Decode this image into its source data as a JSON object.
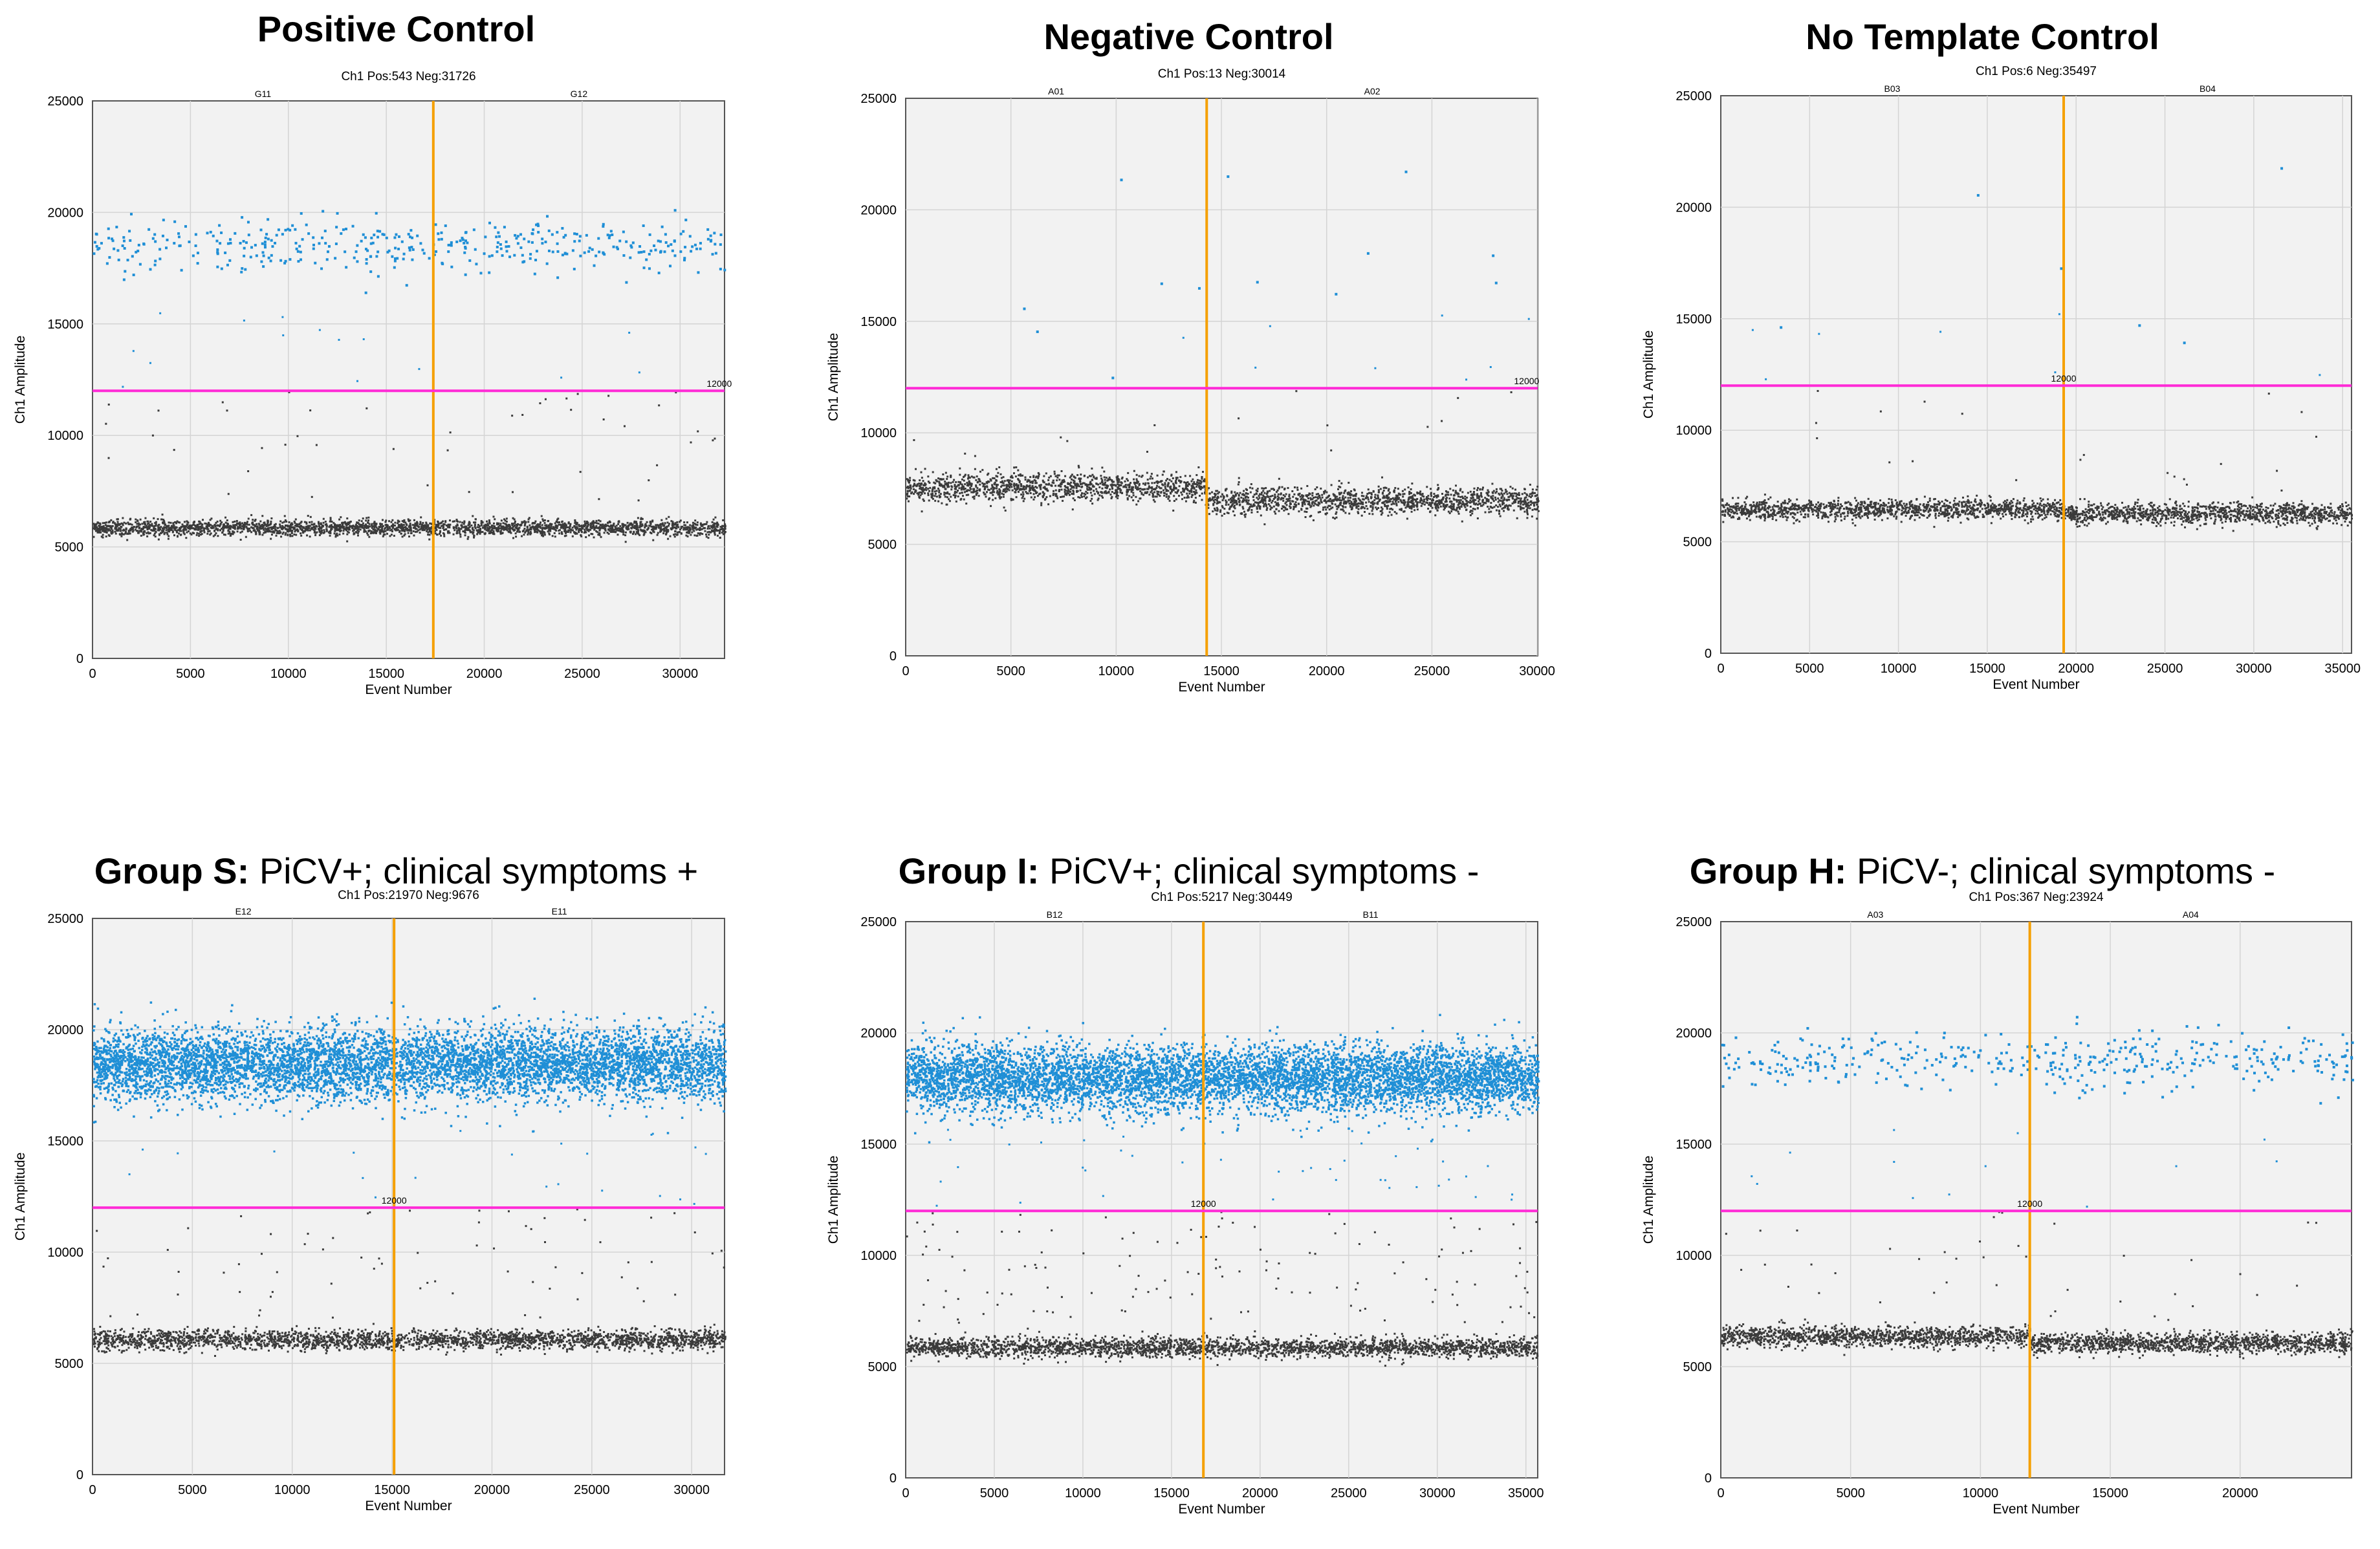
{
  "figure": {
    "threshold_label": "12000",
    "colors": {
      "positive": "#1f8fd6",
      "negative": "#3a3a3a",
      "threshold": "#ff2bd6",
      "well_divider": "#f5a000",
      "plot_bg": "#f2f2f2",
      "grid": "#d4d4d4"
    }
  },
  "chart_data": [
    {
      "type": "scatter",
      "title_bold": "Positive Control",
      "title_rest": "",
      "subtitle": "Ch1 Pos:543 Neg:31726",
      "xlabel": "Event Number",
      "ylabel": "Ch1 Amplitude",
      "xlim": [
        0,
        32269
      ],
      "ylim": [
        0,
        25000
      ],
      "xticks": [
        0,
        5000,
        10000,
        15000,
        20000,
        25000,
        30000
      ],
      "yticks": [
        0,
        5000,
        10000,
        15000,
        20000,
        25000
      ],
      "wells": [
        "G11",
        "G12"
      ],
      "well_split": 17400,
      "threshold": 12000,
      "threshold_label_x": 32000,
      "positive_count": 543,
      "negative_count": 31726,
      "pos_band": [
        {
          "x0": 0,
          "x1": 32269,
          "y": 18500,
          "sd": 650
        }
      ],
      "neg_band": [
        {
          "x0": 0,
          "x1": 32269,
          "y": 5900,
          "sd": 180
        }
      ],
      "scatter_mid": 45,
      "density": "sparse"
    },
    {
      "type": "scatter",
      "title_bold": "Negative Control",
      "title_rest": "",
      "subtitle": "Ch1 Pos:13 Neg:30014",
      "xlabel": "Event Number",
      "ylabel": "Ch1 Amplitude",
      "xlim": [
        0,
        30027
      ],
      "ylim": [
        0,
        25000
      ],
      "xticks": [
        0,
        5000,
        10000,
        15000,
        20000,
        25000,
        30000
      ],
      "yticks": [
        0,
        5000,
        10000,
        15000,
        20000,
        25000
      ],
      "wells": [
        "A01",
        "A02"
      ],
      "well_split": 14300,
      "threshold": 12000,
      "threshold_label_x": 29500,
      "positive_count": 13,
      "negative_count": 30014,
      "pos_band": [],
      "neg_band": [
        {
          "x0": 0,
          "x1": 14300,
          "y": 7600,
          "sd": 330
        },
        {
          "x0": 14300,
          "x1": 30027,
          "y": 7000,
          "sd": 300
        }
      ],
      "scatter_mid": 25,
      "density": "none"
    },
    {
      "type": "scatter",
      "title_bold": "No Template Control",
      "title_rest": "",
      "subtitle": "Ch1 Pos:6 Neg:35497",
      "xlabel": "Event Number",
      "ylabel": "Ch1 Amplitude",
      "xlim": [
        0,
        35503
      ],
      "ylim": [
        0,
        25000
      ],
      "xticks": [
        0,
        5000,
        10000,
        15000,
        20000,
        25000,
        30000,
        35000
      ],
      "yticks": [
        0,
        5000,
        10000,
        15000,
        20000,
        25000
      ],
      "wells": [
        "B03",
        "B04"
      ],
      "well_split": 19300,
      "threshold": 12000,
      "threshold_label_x": 19300,
      "positive_count": 6,
      "negative_count": 35497,
      "pos_band": [],
      "neg_band": [
        {
          "x0": 0,
          "x1": 19300,
          "y": 6500,
          "sd": 220
        },
        {
          "x0": 19300,
          "x1": 35503,
          "y": 6300,
          "sd": 230
        }
      ],
      "scatter_mid": 22,
      "density": "none"
    },
    {
      "type": "scatter",
      "title_bold": "Group S:",
      "title_rest": "PiCV+; clinical symptoms +",
      "subtitle": "Ch1 Pos:21970 Neg:9676",
      "xlabel": "Event Number",
      "ylabel": "Ch1 Amplitude",
      "xlim": [
        0,
        31646
      ],
      "ylim": [
        0,
        25000
      ],
      "xticks": [
        0,
        5000,
        10000,
        15000,
        20000,
        25000,
        30000
      ],
      "yticks": [
        0,
        5000,
        10000,
        15000,
        20000,
        25000
      ],
      "wells": [
        "E12",
        "E11"
      ],
      "well_split": 15100,
      "threshold": 12000,
      "threshold_label_x": 15100,
      "positive_count": 21970,
      "negative_count": 9676,
      "pos_band": [
        {
          "x0": 0,
          "x1": 31646,
          "y": 18500,
          "sd": 800
        }
      ],
      "neg_band": [
        {
          "x0": 0,
          "x1": 31646,
          "y": 6100,
          "sd": 220
        }
      ],
      "scatter_mid": 70,
      "density": "dense"
    },
    {
      "type": "scatter",
      "title_bold": "Group I:",
      "title_rest": "PiCV+; clinical symptoms -",
      "subtitle": "Ch1 Pos:5217 Neg:30449",
      "xlabel": "Event Number",
      "ylabel": "Ch1 Amplitude",
      "xlim": [
        0,
        35666
      ],
      "ylim": [
        0,
        25000
      ],
      "xticks": [
        0,
        5000,
        10000,
        15000,
        20000,
        25000,
        30000,
        35000
      ],
      "yticks": [
        0,
        5000,
        10000,
        15000,
        20000,
        25000
      ],
      "wells": [
        "B12",
        "B11"
      ],
      "well_split": 16800,
      "threshold": 12000,
      "threshold_label_x": 16800,
      "positive_count": 5217,
      "negative_count": 30449,
      "pos_band": [
        {
          "x0": 0,
          "x1": 35666,
          "y": 18000,
          "sd": 750
        }
      ],
      "neg_band": [
        {
          "x0": 0,
          "x1": 35666,
          "y": 5900,
          "sd": 220
        }
      ],
      "scatter_mid": 130,
      "density": "dense"
    },
    {
      "type": "scatter",
      "title_bold": "Group H:",
      "title_rest": "PiCV-; clinical symptoms -",
      "subtitle": "Ch1 Pos:367 Neg:23924",
      "xlabel": "Event Number",
      "ylabel": "Ch1 Amplitude",
      "xlim": [
        0,
        24291
      ],
      "ylim": [
        0,
        25000
      ],
      "xticks": [
        0,
        5000,
        10000,
        15000,
        20000
      ],
      "yticks": [
        0,
        5000,
        10000,
        15000,
        20000,
        25000
      ],
      "wells": [
        "A03",
        "A04"
      ],
      "well_split": 11900,
      "threshold": 12000,
      "threshold_label_x": 11900,
      "positive_count": 367,
      "negative_count": 23924,
      "pos_band": [
        {
          "x0": 0,
          "x1": 24291,
          "y": 18800,
          "sd": 650
        }
      ],
      "neg_band": [
        {
          "x0": 0,
          "x1": 11900,
          "y": 6400,
          "sd": 230
        },
        {
          "x0": 11900,
          "x1": 24291,
          "y": 6100,
          "sd": 230
        }
      ],
      "scatter_mid": 40,
      "density": "sparse"
    }
  ]
}
